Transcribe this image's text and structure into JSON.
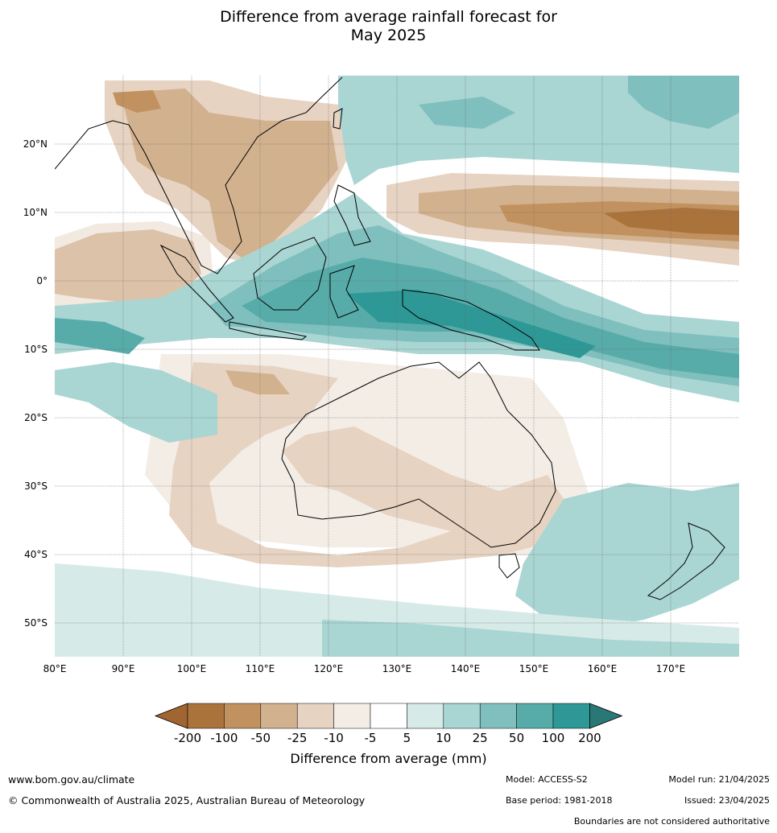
{
  "title_line1": "Difference from average rainfall forecast for",
  "title_line2": "May 2025",
  "map": {
    "lat_labels": [
      "20°N",
      "10°N",
      "0°",
      "10°S",
      "20°S",
      "30°S",
      "40°S",
      "50°S"
    ],
    "lon_labels": [
      "80°E",
      "90°E",
      "100°E",
      "110°E",
      "120°E",
      "130°E",
      "140°E",
      "150°E",
      "160°E",
      "170°E"
    ]
  },
  "legend": {
    "tick_labels": [
      "-200",
      "-100",
      "-50",
      "-25",
      "-10",
      "-5",
      "5",
      "10",
      "25",
      "50",
      "100",
      "200"
    ],
    "colors": [
      "#a06530",
      "#ab733c",
      "#c1925f",
      "#d2b18f",
      "#e6d3c2",
      "#f3ede6",
      "#ffffff",
      "#d6eae8",
      "#a9d5d3",
      "#7fbfbd",
      "#57acaa",
      "#2e9896",
      "#2a7876"
    ],
    "label": "Difference from average (mm)"
  },
  "footer": {
    "website": "www.bom.gov.au/climate",
    "copyright": "© Commonwealth of Australia 2025, Australian Bureau of Meteorology",
    "model": "Model: ACCESS-S2",
    "base_period": "Base period: 1981-2018",
    "model_run": "Model run: 21/04/2025",
    "issued": "Issued: 23/04/2025",
    "disclaimer": "Boundaries are not considered authoritative"
  }
}
